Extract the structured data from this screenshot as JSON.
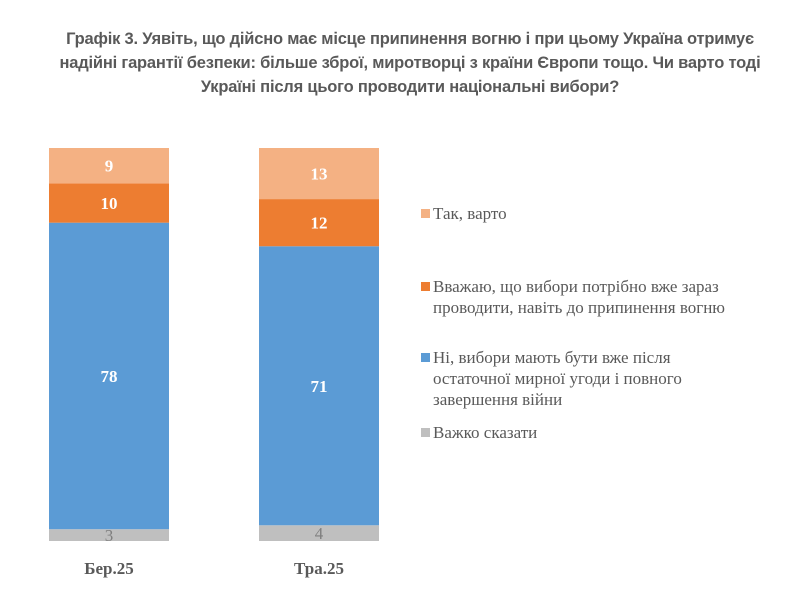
{
  "title_lines": [
    "Графік 3. Уявіть, що дійсно має місце припинення вогню і при цьому Україна отримує",
    "надійні гарантії безпеки: більше зброї, миротворці з країни Європи тощо. Чи варто тоді",
    "Україні після цього проводити національні вибори?"
  ],
  "chart_data": {
    "type": "bar",
    "stacked": true,
    "title": "Графік 3. Уявіть, що дійсно має місце припинення вогню і при цьому Україна отримує надійні гарантії безпеки: більше зброї, миротворці з країни Європи тощо. Чи варто тоді Україні після цього проводити національні вибори?",
    "categories": [
      "Бер.25",
      "Тра.25"
    ],
    "series": [
      {
        "name": "Важко сказати",
        "values": [
          3,
          4
        ],
        "color": "#BFBFBF"
      },
      {
        "name": "Ні, вибори мають бути вже після остаточної мирної угоди і повного завершення війни",
        "values": [
          78,
          71
        ],
        "color": "#5B9BD5"
      },
      {
        "name": "Вважаю, що вибори потрібно вже зараз проводити, навіть до припинення вогню",
        "values": [
          10,
          12
        ],
        "color": "#ED7D31"
      },
      {
        "name": "Так, варто",
        "values": [
          9,
          13
        ],
        "color": "#F4B183"
      }
    ],
    "ylim": [
      0,
      100
    ],
    "legend": "right",
    "grid": false
  }
}
